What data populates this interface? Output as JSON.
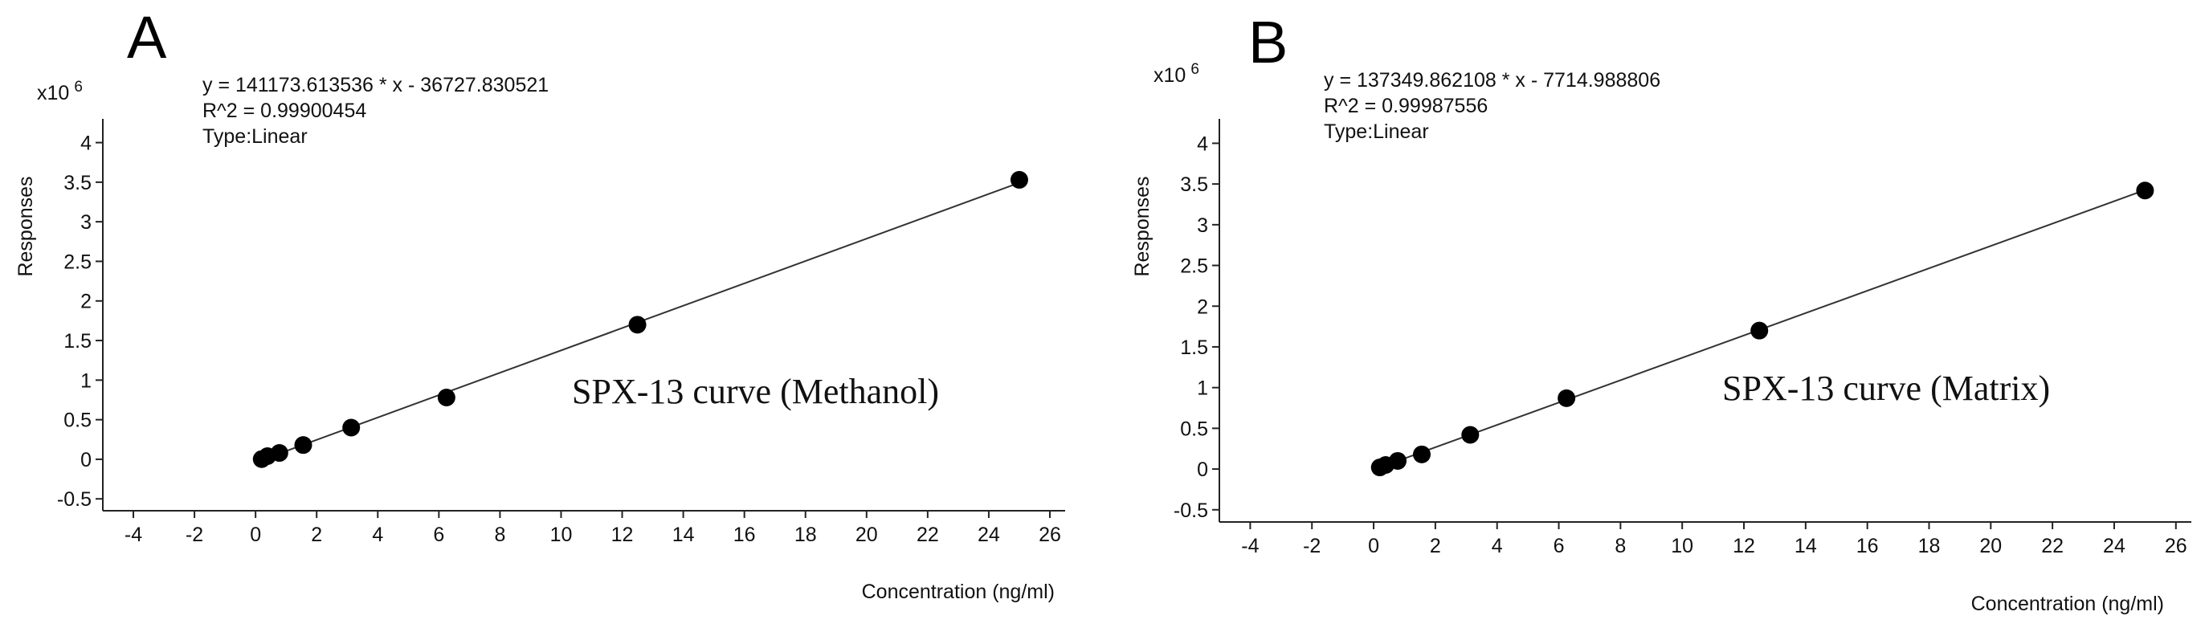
{
  "chart_data": [
    {
      "type": "scatter",
      "panel_label": "A",
      "multiplier_label": "x10",
      "multiplier_exp": "6",
      "equation": "y = 141173.613536 * x  - 36727.830521",
      "r_squared": "R^2 = 0.99900454",
      "fit_type": "Type:Linear",
      "curve_label": "SPX-13 curve (Methanol)",
      "xlabel": "Concentration (ng/ml)",
      "ylabel": "Responses",
      "xlim": [
        -5,
        26.5
      ],
      "ylim": [
        -0.65,
        4.3
      ],
      "xticks": [
        -4,
        -2,
        0,
        2,
        4,
        6,
        8,
        10,
        12,
        14,
        16,
        18,
        20,
        22,
        24,
        26
      ],
      "yticks": [
        -0.5,
        0,
        0.5,
        1,
        1.5,
        2,
        2.5,
        3,
        3.5,
        4
      ],
      "ytick_labels": [
        "-0.5",
        "0",
        "0.5",
        "1",
        "1.5",
        "2",
        "2.5",
        "3",
        "3.5",
        "4"
      ],
      "fit": {
        "slope": 141173.613536,
        "intercept": -36727.830521,
        "x_range": [
          0.2,
          25
        ]
      },
      "points": {
        "x": [
          0.2,
          0.39,
          0.78,
          1.56,
          3.13,
          6.25,
          12.5,
          25
        ],
        "y": [
          0.002,
          0.04,
          0.08,
          0.18,
          0.4,
          0.78,
          1.7,
          3.53
        ]
      }
    },
    {
      "type": "scatter",
      "panel_label": "B",
      "multiplier_label": "x10",
      "multiplier_exp": "6",
      "equation": "y = 137349.862108 * x  - 7714.988806",
      "r_squared": "R^2 = 0.99987556",
      "fit_type": "Type:Linear",
      "curve_label": "SPX-13 curve (Matrix)",
      "xlabel": "Concentration (ng/ml)",
      "ylabel": "Responses",
      "xlim": [
        -5,
        26.5
      ],
      "ylim": [
        -0.65,
        4.3
      ],
      "xticks": [
        -4,
        -2,
        0,
        2,
        4,
        6,
        8,
        10,
        12,
        14,
        16,
        18,
        20,
        22,
        24,
        26
      ],
      "yticks": [
        -0.5,
        0,
        0.5,
        1,
        1.5,
        2,
        2.5,
        3,
        3.5,
        4
      ],
      "ytick_labels": [
        "-0.5",
        "0",
        "0.5",
        "1",
        "1.5",
        "2",
        "2.5",
        "3",
        "3.5",
        "4"
      ],
      "fit": {
        "slope": 137349.862108,
        "intercept": -7714.988806,
        "x_range": [
          0.2,
          25
        ]
      },
      "points": {
        "x": [
          0.2,
          0.39,
          0.78,
          1.56,
          3.13,
          6.25,
          12.5,
          25
        ],
        "y": [
          0.02,
          0.05,
          0.1,
          0.18,
          0.42,
          0.87,
          1.7,
          3.42
        ]
      }
    }
  ]
}
